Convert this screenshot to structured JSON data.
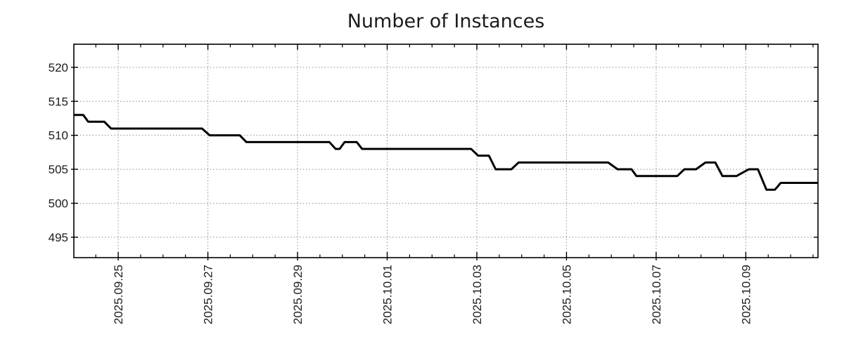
{
  "chart_data": {
    "type": "line",
    "title": "Number of Instances",
    "xlabel": "",
    "ylabel": "",
    "x_unit": "days since 2025-09-24 00:00",
    "xlim": [
      0.01,
      16.61
    ],
    "ylim": [
      492.0,
      523.4
    ],
    "y_ticks": [
      495,
      500,
      505,
      510,
      515,
      520
    ],
    "x_major_ticks": [
      {
        "d": 1,
        "label": "2025.09.25"
      },
      {
        "d": 3,
        "label": "2025.09.27"
      },
      {
        "d": 5,
        "label": "2025.09.29"
      },
      {
        "d": 7,
        "label": "2025.10.01"
      },
      {
        "d": 9,
        "label": "2025.10.03"
      },
      {
        "d": 11,
        "label": "2025.10.05"
      },
      {
        "d": 13,
        "label": "2025.10.07"
      },
      {
        "d": 15,
        "label": "2025.10.09"
      }
    ],
    "x_minor_step": 0.5,
    "grid": true,
    "legend": false,
    "line_color": "#000000",
    "grid_color": "#9b9b9b",
    "axis_color": "#000000",
    "series": [
      {
        "name": "instances",
        "points": [
          [
            0.01,
            513
          ],
          [
            0.22,
            513
          ],
          [
            0.33,
            512
          ],
          [
            0.69,
            512
          ],
          [
            0.84,
            511
          ],
          [
            2.87,
            511
          ],
          [
            3.04,
            510
          ],
          [
            3.71,
            510
          ],
          [
            3.86,
            509
          ],
          [
            5.71,
            509
          ],
          [
            5.85,
            508
          ],
          [
            5.94,
            508
          ],
          [
            6.05,
            509
          ],
          [
            6.32,
            509
          ],
          [
            6.44,
            508
          ],
          [
            8.87,
            508
          ],
          [
            9.03,
            507
          ],
          [
            9.27,
            507
          ],
          [
            9.42,
            505
          ],
          [
            9.77,
            505
          ],
          [
            9.93,
            506
          ],
          [
            11.93,
            506
          ],
          [
            12.14,
            505
          ],
          [
            12.45,
            505
          ],
          [
            12.56,
            504
          ],
          [
            13.47,
            504
          ],
          [
            13.63,
            505
          ],
          [
            13.89,
            505
          ],
          [
            14.1,
            506
          ],
          [
            14.32,
            506
          ],
          [
            14.48,
            504
          ],
          [
            14.79,
            504
          ],
          [
            15.07,
            505
          ],
          [
            15.27,
            505
          ],
          [
            15.46,
            502
          ],
          [
            15.65,
            502
          ],
          [
            15.78,
            503
          ],
          [
            16.61,
            503
          ]
        ]
      }
    ]
  }
}
